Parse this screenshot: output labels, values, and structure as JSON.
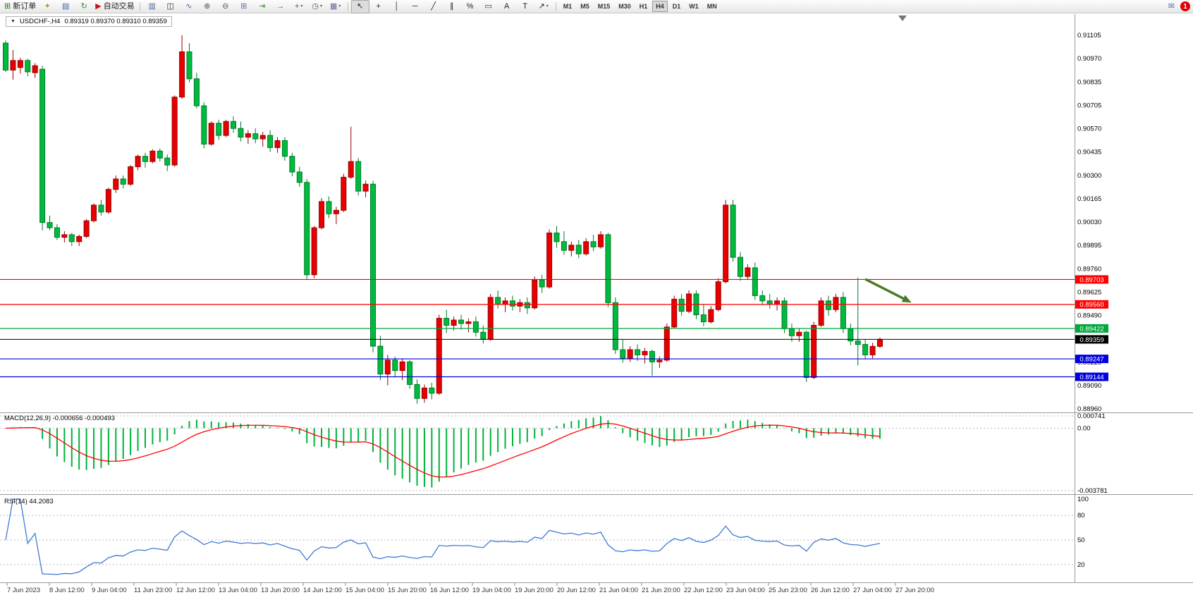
{
  "window": {
    "badge_count": "1",
    "mail_glyph": "✉"
  },
  "toolbar": {
    "buttons": [
      {
        "name": "new-order-button",
        "glyph": "⊞",
        "glyph_color": "#1a7a1a",
        "label": "新订单"
      },
      {
        "name": "experts-button",
        "glyph": "✦",
        "glyph_color": "#c59a00"
      },
      {
        "name": "chart-window-button",
        "glyph": "▤",
        "glyph_color": "#44699d"
      },
      {
        "name": "refresh-button",
        "glyph": "↻",
        "glyph_color": "#2e8b2e"
      },
      {
        "name": "autotrading-button",
        "glyph": "▶",
        "glyph_color": "#cc1111",
        "label": "自动交易"
      },
      {
        "sep": true
      },
      {
        "name": "bar-chart-button",
        "glyph": "▥",
        "glyph_color": "#44699d"
      },
      {
        "name": "candlestick-chart-button",
        "glyph": "◫",
        "glyph_color": "#333333"
      },
      {
        "name": "line-chart-button",
        "glyph": "∿",
        "glyph_color": "#44699d"
      },
      {
        "name": "zoom-in-button",
        "glyph": "⊕",
        "glyph_color": "#555555"
      },
      {
        "name": "zoom-out-button",
        "glyph": "⊖",
        "glyph_color": "#555555"
      },
      {
        "name": "tile-windows-button",
        "glyph": "⊞",
        "glyph_color": "#7a5fa0"
      },
      {
        "name": "auto-scroll-button",
        "glyph": "⇥",
        "glyph_color": "#2e8b2e"
      },
      {
        "name": "chart-shift-button",
        "glyph": "→",
        "glyph_color": "#2e8b2e"
      },
      {
        "name": "indicators-button",
        "glyph": "+",
        "glyph_color": "#1a7a1a",
        "caret": true
      },
      {
        "name": "periods-button",
        "glyph": "◷",
        "glyph_color": "#555555",
        "caret": true
      },
      {
        "name": "templates-button",
        "glyph": "▦",
        "glyph_color": "#7a5fa0",
        "caret": true
      },
      {
        "sep": true
      },
      {
        "name": "cursor-button",
        "glyph": "↖",
        "glyph_color": "#222222",
        "active": true
      },
      {
        "name": "crosshair-button",
        "glyph": "+",
        "glyph_color": "#222222"
      },
      {
        "name": "vertical-line-button",
        "glyph": "│",
        "glyph_color": "#222222"
      },
      {
        "name": "horizontal-line-button",
        "glyph": "─",
        "glyph_color": "#222222"
      },
      {
        "name": "trendline-button",
        "glyph": "╱",
        "glyph_color": "#222222"
      },
      {
        "name": "channel-button",
        "glyph": "∥",
        "glyph_color": "#222222"
      },
      {
        "name": "fibonacci-button",
        "glyph": "%",
        "glyph_color": "#222222"
      },
      {
        "name": "shapes-button",
        "glyph": "▭",
        "glyph_color": "#222222"
      },
      {
        "name": "text-button",
        "glyph": "A",
        "glyph_color": "#222222"
      },
      {
        "name": "text-label-button",
        "glyph": "T",
        "glyph_color": "#222222"
      },
      {
        "name": "arrows-button",
        "glyph": "↗",
        "glyph_color": "#222222",
        "caret": true
      },
      {
        "sep": true
      }
    ],
    "timeframes": {
      "items": [
        "M1",
        "M5",
        "M15",
        "M30",
        "H1",
        "H4",
        "D1",
        "W1",
        "MN"
      ],
      "active": "H4"
    }
  },
  "chart": {
    "title": {
      "dropdown_icon": "▼",
      "symbol_period": "USDCHF-,H4",
      "ohlc": "0.89319 0.89370 0.89310 0.89359"
    },
    "price_tags": [
      {
        "text": "0.89703",
        "color": "#ff0000"
      },
      {
        "text": "0.89560",
        "color": "#ff0000"
      },
      {
        "text": "0.89422",
        "color": "#00a83c"
      },
      {
        "text": "0.89359",
        "color": "#000000"
      },
      {
        "text": "0.89247",
        "color": "#0000e0"
      },
      {
        "text": "0.89144",
        "color": "#0000e0"
      }
    ]
  },
  "chart_data": {
    "type": "candlestick",
    "symbol": "USDCHF-",
    "timeframe": "H4",
    "title": "USDCHF-,H4 0.89319 0.89370 0.89310 0.89359",
    "current_ohlc": {
      "open": 0.89319,
      "high": 0.8937,
      "low": 0.8931,
      "close": 0.89359
    },
    "current_price": 0.89359,
    "colors": {
      "up": "#e80000",
      "up_border": "#990000",
      "down": "#00ba3e",
      "down_border": "#007a28",
      "background": "#ffffff"
    },
    "price_axis": {
      "ticks": [
        "0.91105",
        "0.90970",
        "0.90835",
        "0.90705",
        "0.90570",
        "0.90435",
        "0.90300",
        "0.90165",
        "0.90030",
        "0.89895",
        "0.89760",
        "0.89625",
        "0.89490",
        "0.89355",
        "0.89220",
        "0.89090",
        "0.88960"
      ]
    },
    "time_labels": [
      "7 Jun 2023",
      "8 Jun 12:00",
      "9 Jun 04:00",
      "11 Jun 23:00",
      "12 Jun 12:00",
      "13 Jun 04:00",
      "13 Jun 20:00",
      "14 Jun 12:00",
      "15 Jun 04:00",
      "15 Jun 20:00",
      "16 Jun 12:00",
      "19 Jun 04:00",
      "19 Jun 20:00",
      "20 Jun 12:00",
      "21 Jun 04:00",
      "21 Jun 20:00",
      "22 Jun 12:00",
      "23 Jun 04:00",
      "25 Jun 23:00",
      "26 Jun 12:00",
      "27 Jun 04:00",
      "27 Jun 20:00"
    ],
    "hlines": [
      {
        "price": 0.89703,
        "color": "#ff0000",
        "label": "0.89703"
      },
      {
        "price": 0.8956,
        "color": "#ff0000",
        "label": "0.89560"
      },
      {
        "price": 0.89422,
        "color": "#00a83c",
        "label": "0.89422"
      },
      {
        "price": 0.89359,
        "color": "#000000",
        "label": "0.89359",
        "current": true
      },
      {
        "price": 0.89247,
        "color": "#0000e0",
        "label": "0.89247"
      },
      {
        "price": 0.89144,
        "color": "#0000e0",
        "label": "0.89144"
      }
    ],
    "annotations": [
      {
        "type": "arrow",
        "color": "#4c7a26",
        "from_index": 117,
        "from_price": 0.89705,
        "to_index": 123.3,
        "to_price": 0.8957
      }
    ],
    "indicators": [
      {
        "type": "MACD",
        "params": [
          12,
          26,
          9
        ],
        "label": "MACD(12,26,9) -0.000656 -0.000493",
        "values_text": [
          "-0.000656",
          "-0.000493"
        ],
        "axis_labels": [
          "0.000741",
          "0.00",
          "-0.003781"
        ],
        "axis_values": [
          0.000741,
          0,
          -0.003781
        ],
        "histogram_color": "#00b23c",
        "signal_color": "#ff0000"
      },
      {
        "type": "RSI",
        "params": [
          14
        ],
        "label": "RSI(14) 44.2083",
        "value": 44.2083,
        "axis_labels": [
          "100",
          "80",
          "50",
          "20"
        ],
        "axis_values": [
          100,
          80,
          50,
          20
        ],
        "levels": [
          80,
          50,
          20
        ],
        "line_color": "#3e79d6"
      }
    ],
    "candles": [
      [
        0.9106,
        0.91075,
        0.90895,
        0.90905
      ],
      [
        0.90905,
        0.9102,
        0.9085,
        0.9096
      ],
      [
        0.9092,
        0.90975,
        0.90885,
        0.9096
      ],
      [
        0.9096,
        0.9097,
        0.9087,
        0.90895
      ],
      [
        0.9089,
        0.90945,
        0.9086,
        0.9093
      ],
      [
        0.9091,
        0.9093,
        0.89985,
        0.9003
      ],
      [
        0.9003,
        0.9007,
        0.89985,
        0.9
      ],
      [
        0.9,
        0.9002,
        0.8993,
        0.89945
      ],
      [
        0.89945,
        0.8998,
        0.89915,
        0.8996
      ],
      [
        0.8996,
        0.8997,
        0.89895,
        0.8992
      ],
      [
        0.8992,
        0.8996,
        0.89895,
        0.8995
      ],
      [
        0.8995,
        0.9005,
        0.8994,
        0.9004
      ],
      [
        0.9004,
        0.9014,
        0.9003,
        0.9013
      ],
      [
        0.9013,
        0.9016,
        0.9007,
        0.9009
      ],
      [
        0.9009,
        0.9023,
        0.9008,
        0.9022
      ],
      [
        0.9022,
        0.903,
        0.902,
        0.9028
      ],
      [
        0.9028,
        0.903,
        0.90225,
        0.9025
      ],
      [
        0.9025,
        0.9036,
        0.9024,
        0.9035
      ],
      [
        0.9035,
        0.9042,
        0.9033,
        0.9041
      ],
      [
        0.9041,
        0.9043,
        0.90345,
        0.9038
      ],
      [
        0.9038,
        0.9045,
        0.9037,
        0.9044
      ],
      [
        0.9044,
        0.90455,
        0.9038,
        0.904
      ],
      [
        0.904,
        0.9042,
        0.90325,
        0.9036
      ],
      [
        0.9036,
        0.9076,
        0.9035,
        0.9075
      ],
      [
        0.9075,
        0.91105,
        0.9074,
        0.9101
      ],
      [
        0.9101,
        0.9106,
        0.90835,
        0.90855
      ],
      [
        0.90855,
        0.9089,
        0.90685,
        0.907
      ],
      [
        0.907,
        0.9072,
        0.90455,
        0.9048
      ],
      [
        0.9048,
        0.9061,
        0.9047,
        0.906
      ],
      [
        0.906,
        0.9062,
        0.90505,
        0.9053
      ],
      [
        0.9053,
        0.9062,
        0.9052,
        0.9061
      ],
      [
        0.9061,
        0.9064,
        0.90545,
        0.9057
      ],
      [
        0.9057,
        0.9061,
        0.90495,
        0.9052
      ],
      [
        0.9052,
        0.9056,
        0.9048,
        0.9054
      ],
      [
        0.9054,
        0.9057,
        0.90485,
        0.9051
      ],
      [
        0.9051,
        0.9055,
        0.90465,
        0.9053
      ],
      [
        0.9053,
        0.9056,
        0.90435,
        0.9046
      ],
      [
        0.9046,
        0.9052,
        0.9043,
        0.905
      ],
      [
        0.905,
        0.9052,
        0.90385,
        0.9041
      ],
      [
        0.9041,
        0.9043,
        0.90295,
        0.9032
      ],
      [
        0.9032,
        0.9035,
        0.90235,
        0.9026
      ],
      [
        0.9026,
        0.9028,
        0.897,
        0.8973
      ],
      [
        0.8973,
        0.9001,
        0.8971,
        0.9
      ],
      [
        0.9,
        0.9017,
        0.8999,
        0.9015
      ],
      [
        0.9015,
        0.9018,
        0.90055,
        0.9008
      ],
      [
        0.9008,
        0.9012,
        0.9002,
        0.901
      ],
      [
        0.901,
        0.9031,
        0.9009,
        0.9029
      ],
      [
        0.9029,
        0.9058,
        0.9028,
        0.9038
      ],
      [
        0.9038,
        0.904,
        0.90185,
        0.9021
      ],
      [
        0.9021,
        0.9027,
        0.90175,
        0.9025
      ],
      [
        0.9025,
        0.9027,
        0.89285,
        0.8932
      ],
      [
        0.8932,
        0.8938,
        0.89125,
        0.8916
      ],
      [
        0.8916,
        0.8927,
        0.89095,
        0.8924
      ],
      [
        0.8924,
        0.8926,
        0.89145,
        0.8918
      ],
      [
        0.8918,
        0.8925,
        0.89125,
        0.8923
      ],
      [
        0.8923,
        0.8924,
        0.89075,
        0.891
      ],
      [
        0.891,
        0.8913,
        0.8899,
        0.8902
      ],
      [
        0.8902,
        0.891,
        0.88995,
        0.8908
      ],
      [
        0.8908,
        0.8911,
        0.89015,
        0.8905
      ],
      [
        0.8905,
        0.895,
        0.8904,
        0.8948
      ],
      [
        0.8948,
        0.8953,
        0.89395,
        0.8944
      ],
      [
        0.8944,
        0.8949,
        0.8941,
        0.8947
      ],
      [
        0.8947,
        0.895,
        0.89415,
        0.8945
      ],
      [
        0.8945,
        0.8948,
        0.894,
        0.8946
      ],
      [
        0.8946,
        0.8949,
        0.89375,
        0.894
      ],
      [
        0.894,
        0.8944,
        0.89335,
        0.8936
      ],
      [
        0.8936,
        0.8962,
        0.8935,
        0.896
      ],
      [
        0.896,
        0.8964,
        0.89535,
        0.8956
      ],
      [
        0.8956,
        0.896,
        0.89515,
        0.8958
      ],
      [
        0.8958,
        0.8961,
        0.89525,
        0.8955
      ],
      [
        0.8955,
        0.8959,
        0.89515,
        0.8957
      ],
      [
        0.8957,
        0.896,
        0.89505,
        0.8954
      ],
      [
        0.8954,
        0.8972,
        0.8953,
        0.897
      ],
      [
        0.897,
        0.8973,
        0.89625,
        0.8966
      ],
      [
        0.8966,
        0.8999,
        0.8965,
        0.8997
      ],
      [
        0.8997,
        0.9001,
        0.89885,
        0.8992
      ],
      [
        0.8992,
        0.8998,
        0.89845,
        0.8987
      ],
      [
        0.8987,
        0.8992,
        0.89835,
        0.899
      ],
      [
        0.899,
        0.8993,
        0.89825,
        0.8985
      ],
      [
        0.8985,
        0.8994,
        0.8984,
        0.8992
      ],
      [
        0.8992,
        0.8996,
        0.89865,
        0.8989
      ],
      [
        0.8989,
        0.8998,
        0.8988,
        0.8996
      ],
      [
        0.8996,
        0.8997,
        0.89545,
        0.8957
      ],
      [
        0.8957,
        0.896,
        0.89275,
        0.893
      ],
      [
        0.893,
        0.8936,
        0.89225,
        0.8925
      ],
      [
        0.8925,
        0.8932,
        0.8923,
        0.893
      ],
      [
        0.893,
        0.8933,
        0.89235,
        0.8927
      ],
      [
        0.8927,
        0.8931,
        0.8922,
        0.8929
      ],
      [
        0.8929,
        0.893,
        0.8915,
        0.8923
      ],
      [
        0.8923,
        0.8926,
        0.89195,
        0.8924
      ],
      [
        0.8924,
        0.8945,
        0.8923,
        0.8943
      ],
      [
        0.8943,
        0.8961,
        0.8942,
        0.8959
      ],
      [
        0.8959,
        0.8962,
        0.89495,
        0.8952
      ],
      [
        0.8952,
        0.8964,
        0.8951,
        0.8962
      ],
      [
        0.8962,
        0.8964,
        0.89475,
        0.895
      ],
      [
        0.895,
        0.8956,
        0.89435,
        0.8946
      ],
      [
        0.8946,
        0.8955,
        0.8945,
        0.8953
      ],
      [
        0.8953,
        0.8971,
        0.8952,
        0.8969
      ],
      [
        0.8969,
        0.9016,
        0.8968,
        0.9013
      ],
      [
        0.9013,
        0.9016,
        0.89805,
        0.8983
      ],
      [
        0.8983,
        0.8986,
        0.89695,
        0.8972
      ],
      [
        0.8972,
        0.8979,
        0.897,
        0.8977
      ],
      [
        0.8977,
        0.898,
        0.89585,
        0.8961
      ],
      [
        0.8961,
        0.8964,
        0.89555,
        0.8958
      ],
      [
        0.8958,
        0.8962,
        0.89535,
        0.8956
      ],
      [
        0.8956,
        0.896,
        0.89525,
        0.8958
      ],
      [
        0.8958,
        0.896,
        0.89395,
        0.8942
      ],
      [
        0.8942,
        0.8945,
        0.89345,
        0.8938
      ],
      [
        0.8938,
        0.8942,
        0.89345,
        0.894
      ],
      [
        0.894,
        0.8941,
        0.89115,
        0.8914
      ],
      [
        0.8914,
        0.8946,
        0.8913,
        0.8944
      ],
      [
        0.8944,
        0.896,
        0.8943,
        0.8958
      ],
      [
        0.8958,
        0.8961,
        0.89495,
        0.8953
      ],
      [
        0.8953,
        0.8962,
        0.89515,
        0.896
      ],
      [
        0.896,
        0.8963,
        0.89395,
        0.8942
      ],
      [
        0.8942,
        0.8945,
        0.89325,
        0.8935
      ],
      [
        0.8935,
        0.89715,
        0.8921,
        0.8933
      ],
      [
        0.8933,
        0.8936,
        0.89245,
        0.8927
      ],
      [
        0.8927,
        0.8934,
        0.8925,
        0.89319
      ],
      [
        0.89319,
        0.8937,
        0.8931,
        0.89359
      ]
    ]
  }
}
